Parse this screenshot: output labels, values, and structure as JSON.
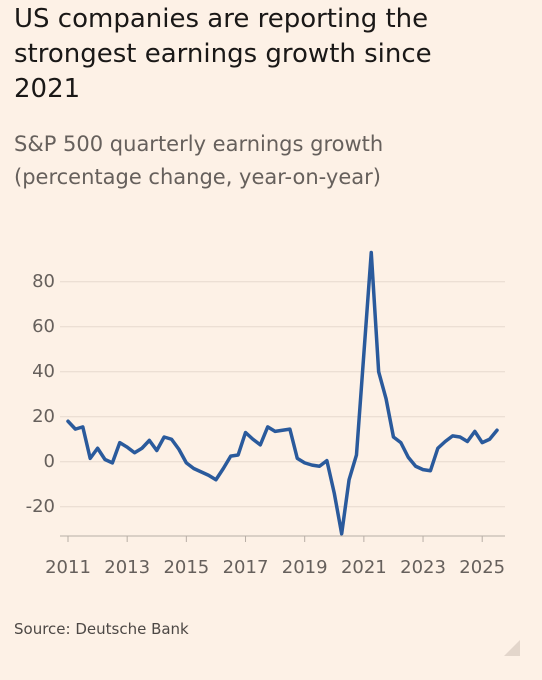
{
  "chart_data": {
    "type": "line",
    "title": "US companies are reporting the strongest earnings growth since 2021",
    "subtitle": "S&P 500 quarterly earnings growth (percentage change, year-on-year)",
    "source": "Source: Deutsche Bank",
    "x": [
      2011,
      2011.25,
      2011.5,
      2011.75,
      2012,
      2012.25,
      2012.5,
      2012.75,
      2013,
      2013.25,
      2013.5,
      2013.75,
      2014,
      2014.25,
      2014.5,
      2014.75,
      2015,
      2015.25,
      2015.5,
      2015.75,
      2016,
      2016.25,
      2016.5,
      2016.75,
      2017,
      2017.25,
      2017.5,
      2017.75,
      2018,
      2018.25,
      2018.5,
      2018.75,
      2019,
      2019.25,
      2019.5,
      2019.75,
      2020,
      2020.25,
      2020.5,
      2020.75,
      2021,
      2021.25,
      2021.5,
      2021.75,
      2022,
      2022.25,
      2022.5,
      2022.75,
      2023,
      2023.25,
      2023.5,
      2023.75,
      2024,
      2024.25,
      2024.5,
      2024.75,
      2025,
      2025.25,
      2025.5
    ],
    "series": [
      {
        "name": "S&P 500 quarterly earnings growth",
        "color": "#2a5a9c",
        "values": [
          18,
          14.5,
          15.5,
          1.5,
          6,
          1,
          -0.5,
          8.5,
          6.5,
          4,
          6,
          9.5,
          5,
          11,
          10,
          5.5,
          -0.5,
          -3,
          -4.5,
          -6,
          -8,
          -3,
          2.5,
          3,
          13,
          10,
          7.5,
          15.5,
          13.5,
          14,
          14.5,
          1.5,
          -0.5,
          -1.5,
          -2,
          0.5,
          -14,
          -32,
          -8,
          3,
          48,
          93,
          40,
          28,
          11,
          8.5,
          2,
          -2,
          -3.5,
          -4,
          6,
          9,
          11.5,
          11,
          9,
          13.5,
          8.5,
          10,
          14
        ]
      }
    ],
    "xlim": [
      2011,
      2025.5
    ],
    "xticks": [
      2011,
      2013,
      2015,
      2017,
      2019,
      2021,
      2023,
      2025
    ],
    "ylim": [
      -33,
      95
    ],
    "yticks": [
      -20,
      0,
      20,
      40,
      60,
      80
    ],
    "grid": true
  }
}
